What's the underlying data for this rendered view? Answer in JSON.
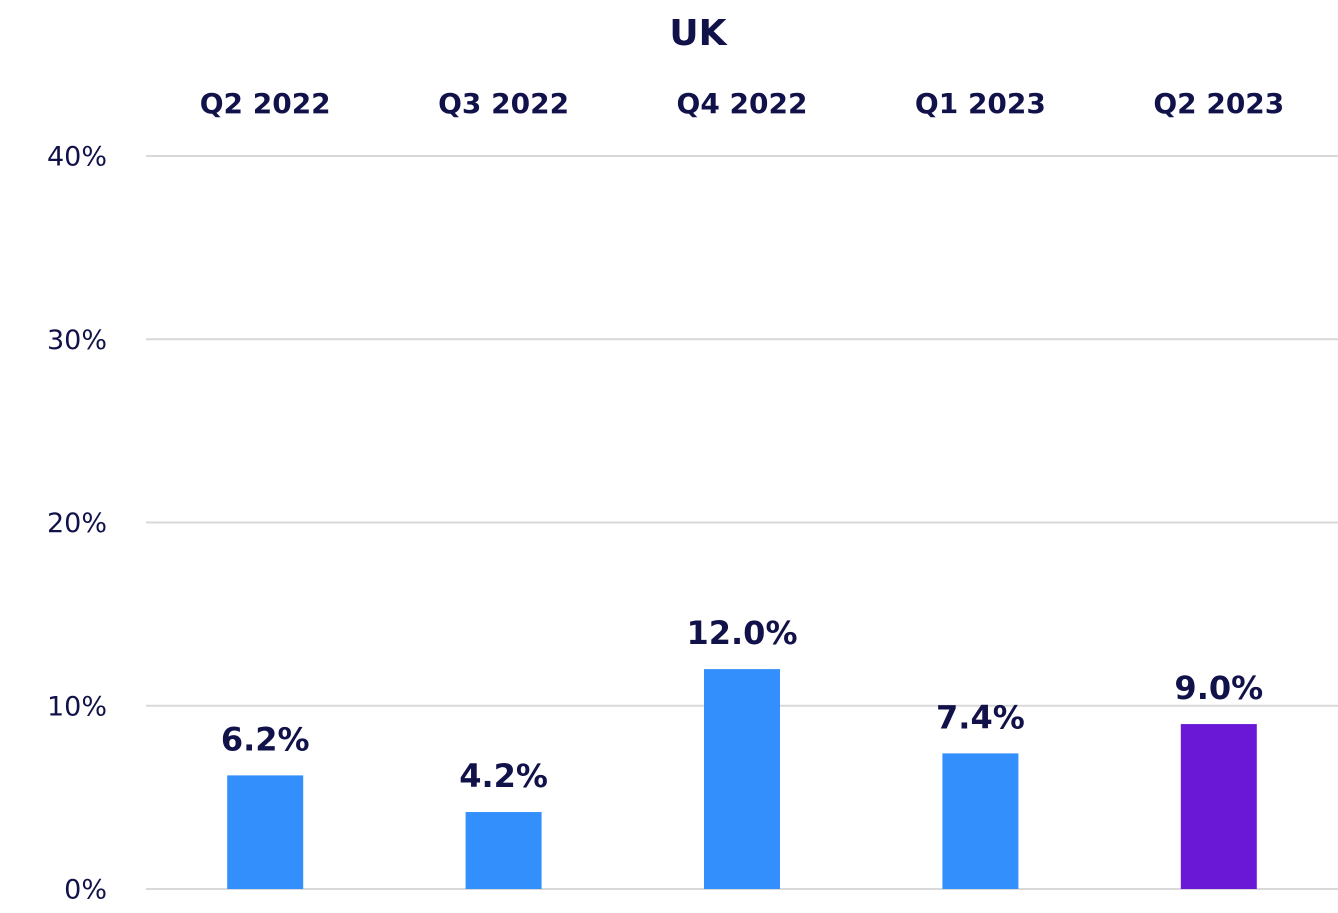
{
  "chart_data": {
    "type": "bar",
    "title": "UK",
    "categories": [
      "Q2 2022",
      "Q3 2022",
      "Q4 2022",
      "Q1 2023",
      "Q2 2023"
    ],
    "values": [
      6.2,
      4.2,
      12.0,
      7.4,
      9.0
    ],
    "value_labels": [
      "6.2%",
      "4.2%",
      "12.0%",
      "7.4%",
      "9.0%"
    ],
    "colors": [
      "#338ffb",
      "#338ffb",
      "#338ffb",
      "#338ffb",
      "#6a18d6"
    ],
    "ylim": [
      0,
      40
    ],
    "yticks": [
      {
        "value": 0,
        "label": "0%"
      },
      {
        "value": 10,
        "label": "10%"
      },
      {
        "value": 20,
        "label": "20%"
      },
      {
        "value": 30,
        "label": "30%"
      },
      {
        "value": 40,
        "label": "40%"
      }
    ],
    "grid": true
  }
}
